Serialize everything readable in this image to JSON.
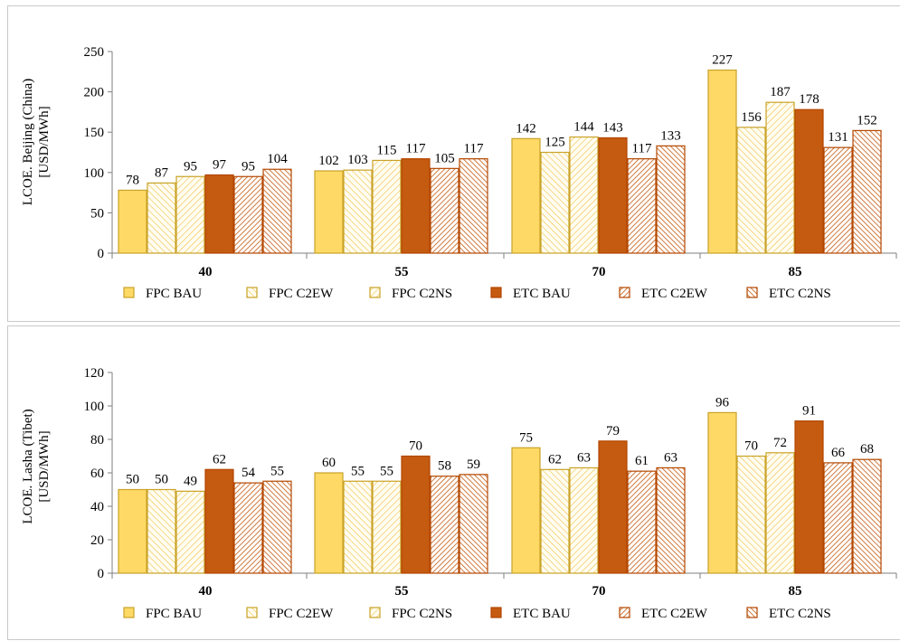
{
  "colors": {
    "fpc_bau_fill": "#ffd966",
    "fpc_bau_stroke": "#c9a227",
    "fpc_hatch": "#f0c040",
    "etc_bau_fill": "#c55a11",
    "etc_stroke": "#b34700",
    "etc_hatch": "#c55a11",
    "axis": "#7f7f7f"
  },
  "chart_data": [
    {
      "type": "bar",
      "ylabel_line1": "LCOE. Beijing (China)",
      "ylabel_line2": "[USD/MWh]",
      "categories": [
        "40",
        "55",
        "70",
        "85"
      ],
      "ylim": [
        0,
        250
      ],
      "yticks": [
        "0",
        "50",
        "100",
        "150",
        "200",
        "250"
      ],
      "legend_position": "bottom",
      "series": [
        {
          "name": "FPC BAU",
          "values": [
            78,
            102,
            142,
            227
          ]
        },
        {
          "name": "FPC C2EW",
          "values": [
            87,
            103,
            125,
            156
          ]
        },
        {
          "name": "FPC C2NS",
          "values": [
            95,
            115,
            144,
            187
          ]
        },
        {
          "name": "ETC BAU",
          "values": [
            97,
            117,
            143,
            178
          ]
        },
        {
          "name": "ETC C2EW",
          "values": [
            95,
            105,
            117,
            131
          ]
        },
        {
          "name": "ETC C2NS",
          "values": [
            104,
            117,
            133,
            152
          ]
        }
      ]
    },
    {
      "type": "bar",
      "ylabel_line1": "LCOE. Lasha (Tibet)",
      "ylabel_line2": "[USD/MWh]",
      "categories": [
        "40",
        "55",
        "70",
        "85"
      ],
      "ylim": [
        0,
        120
      ],
      "yticks": [
        "0",
        "20",
        "40",
        "60",
        "80",
        "100",
        "120"
      ],
      "legend_position": "bottom",
      "series": [
        {
          "name": "FPC BAU",
          "values": [
            50,
            60,
            75,
            96
          ]
        },
        {
          "name": "FPC C2EW",
          "values": [
            50,
            55,
            62,
            70
          ]
        },
        {
          "name": "FPC C2NS",
          "values": [
            49,
            55,
            63,
            72
          ]
        },
        {
          "name": "ETC BAU",
          "values": [
            62,
            70,
            79,
            91
          ]
        },
        {
          "name": "ETC C2EW",
          "values": [
            54,
            58,
            61,
            66
          ]
        },
        {
          "name": "ETC C2NS",
          "values": [
            55,
            59,
            63,
            68
          ]
        }
      ]
    }
  ]
}
